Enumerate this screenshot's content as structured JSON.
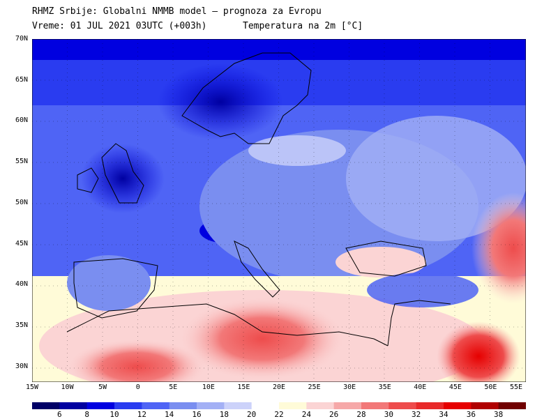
{
  "header": {
    "line1": "RHMZ Srbije: Globalni NMMB model — prognoza za Evropu",
    "line2_left": "Vreme: 01 JUL 2021 03UTC (+003h)",
    "line2_right": "Temperatura na 2m [°C]"
  },
  "lat_labels": [
    "70N",
    "65N",
    "60N",
    "55N",
    "50N",
    "45N",
    "40N",
    "35N",
    "30N"
  ],
  "lon_labels": [
    "15W",
    "10W",
    "5W",
    "0",
    "5E",
    "10E",
    "15E",
    "20E",
    "25E",
    "30E",
    "35E",
    "40E",
    "45E",
    "50E",
    "55E"
  ],
  "colorbar": {
    "colors": [
      "#000066",
      "#0000a0",
      "#0000e0",
      "#2a3cf0",
      "#4f64f5",
      "#7a8ef0",
      "#a3b0f5",
      "#ccd2fa",
      "#ffffff",
      "#fffbd8",
      "#fbd4d4",
      "#f6a8a8",
      "#f27878",
      "#ee4c4c",
      "#e82a2a",
      "#e60000",
      "#b00000",
      "#700000"
    ],
    "ticks": [
      "6",
      "8",
      "10",
      "12",
      "14",
      "16",
      "18",
      "20",
      "22",
      "24",
      "26",
      "28",
      "30",
      "32",
      "34",
      "36",
      "38"
    ]
  }
}
